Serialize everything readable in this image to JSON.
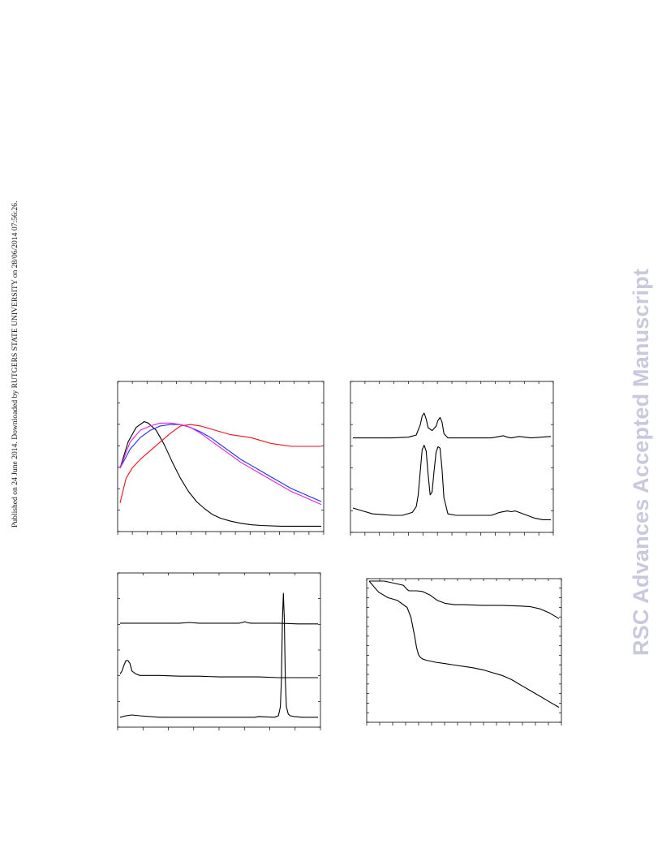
{
  "provenance": "Published on 24 June 2014. Downloaded by RUTGERS STATE UNIVERSITY on 28/06/2014 07:56:26.",
  "watermark": "RSC Advances Accepted Manuscript",
  "colors": {
    "black": "#000000",
    "red": "#e8101a",
    "blue": "#1a2cf0",
    "magenta": "#e01ee0"
  },
  "chart_data": [
    {
      "type": "line",
      "panel": "top-left",
      "title": "",
      "xlabel": "",
      "ylabel": "",
      "xlim": [
        0,
        100
      ],
      "ylim": [
        0,
        100
      ],
      "series": [
        {
          "color": "#000000",
          "x": [
            0,
            4,
            8,
            12,
            14,
            18,
            22,
            26,
            30,
            34,
            38,
            42,
            46,
            50,
            55,
            60,
            65,
            70,
            80,
            90,
            100
          ],
          "y": [
            42,
            60,
            70,
            74,
            73,
            68,
            58,
            46,
            35,
            26,
            19,
            14,
            10,
            7.5,
            5.5,
            4,
            3,
            2.5,
            2,
            2,
            2
          ]
        },
        {
          "color": "#e8101a",
          "x": [
            0,
            3,
            6,
            10,
            15,
            20,
            25,
            30,
            35,
            40,
            45,
            50,
            55,
            60,
            65,
            70,
            75,
            80,
            85,
            90,
            95,
            100
          ],
          "y": [
            18,
            35,
            42,
            48,
            54,
            60,
            66,
            71,
            72,
            71,
            69,
            67,
            65,
            64,
            63,
            61,
            59,
            58,
            57,
            57,
            57,
            57
          ]
        },
        {
          "color": "#1a2cf0",
          "x": [
            0,
            5,
            10,
            15,
            20,
            25,
            30,
            35,
            40,
            45,
            50,
            55,
            60,
            65,
            70,
            75,
            80,
            85,
            90,
            95,
            100
          ],
          "y": [
            42,
            55,
            63,
            68,
            71,
            72,
            72,
            70,
            67,
            63,
            58,
            53,
            48,
            44,
            40,
            36,
            32,
            28,
            25,
            22,
            19
          ]
        },
        {
          "color": "#e01ee0",
          "x": [
            0,
            5,
            10,
            15,
            20,
            25,
            30,
            35,
            40,
            45,
            50,
            55,
            60,
            65,
            70,
            75,
            80,
            85,
            90,
            95,
            100
          ],
          "y": [
            42,
            60,
            68,
            71,
            73,
            73,
            72,
            70,
            66,
            61,
            56,
            51,
            46,
            42,
            38,
            34,
            30,
            26,
            23,
            20,
            17
          ]
        }
      ]
    },
    {
      "type": "line",
      "panel": "top-right",
      "title": "",
      "xlabel": "",
      "ylabel": "",
      "xlim": [
        0,
        100
      ],
      "ylim": [
        0,
        100
      ],
      "series": [
        {
          "color": "#000000",
          "x": [
            0,
            10,
            20,
            28,
            32,
            34,
            35,
            36,
            37,
            38,
            40,
            42,
            43,
            44,
            45,
            46,
            48,
            52,
            60,
            70,
            74,
            76,
            78,
            80,
            82,
            84,
            90,
            100
          ],
          "y": [
            63,
            63,
            63,
            63.5,
            65,
            72,
            78,
            80,
            76,
            70,
            68,
            71,
            75,
            77,
            74,
            66,
            63,
            63,
            63,
            63,
            64,
            64.5,
            63.5,
            63,
            63.5,
            64,
            63,
            64
          ]
        },
        {
          "color": "#000000",
          "x": [
            0,
            5,
            10,
            15,
            20,
            25,
            30,
            32,
            33,
            34,
            35,
            36,
            37,
            38,
            39,
            40,
            41,
            42,
            43,
            44,
            45,
            46,
            48,
            52,
            60,
            70,
            74,
            78,
            80,
            82,
            84,
            88,
            92,
            96,
            100
          ],
          "y": [
            15,
            13,
            11,
            10.5,
            10,
            10,
            12,
            16,
            24,
            40,
            55,
            58,
            54,
            38,
            24,
            26,
            40,
            53,
            57,
            56,
            42,
            22,
            11,
            10,
            10,
            10,
            12,
            13,
            12.5,
            13,
            12,
            10,
            8,
            7,
            7
          ]
        }
      ]
    },
    {
      "type": "line",
      "panel": "bottom-left",
      "title": "",
      "xlabel": "",
      "ylabel": "",
      "xlim": [
        0,
        100
      ],
      "ylim": [
        0,
        100
      ],
      "series": [
        {
          "color": "#000000",
          "x": [
            0,
            10,
            20,
            30,
            35,
            40,
            50,
            60,
            62,
            63,
            64,
            66,
            70,
            80,
            90,
            100
          ],
          "y": [
            68,
            68,
            68,
            68,
            68.5,
            68,
            68,
            68,
            68.5,
            69,
            68.5,
            68,
            68,
            68,
            67.5,
            67.5
          ]
        },
        {
          "color": "#000000",
          "x": [
            0,
            1,
            2,
            3,
            4,
            5,
            6,
            8,
            10,
            14,
            20,
            30,
            40,
            50,
            60,
            70,
            80,
            90,
            100
          ],
          "y": [
            34,
            36,
            40,
            43,
            43,
            41,
            36,
            34,
            33,
            33,
            33,
            32.5,
            32.5,
            32,
            32,
            32,
            31.5,
            31.5,
            31.5
          ]
        },
        {
          "color": "#000000",
          "x": [
            0,
            3,
            6,
            10,
            20,
            30,
            40,
            50,
            60,
            68,
            70,
            78,
            80,
            81,
            81.5,
            82,
            82.5,
            83,
            83.5,
            84,
            85,
            86,
            88,
            92,
            100
          ],
          "y": [
            5,
            6,
            6.5,
            6,
            5,
            5,
            5,
            5,
            5,
            5,
            5.5,
            5,
            6,
            12,
            30,
            70,
            88,
            70,
            30,
            12,
            7,
            6,
            5.5,
            5,
            5
          ]
        }
      ]
    },
    {
      "type": "line",
      "panel": "bottom-right",
      "title": "",
      "xlabel": "",
      "ylabel": "",
      "xlim": [
        0,
        100
      ],
      "ylim": [
        0,
        100
      ],
      "series": [
        {
          "color": "#000000",
          "x": [
            0,
            8,
            18,
            20,
            21,
            22,
            25,
            28,
            32,
            36,
            40,
            45,
            50,
            60,
            70,
            80,
            85,
            90,
            95,
            100
          ],
          "y": [
            100,
            100,
            97,
            94,
            93,
            93,
            93,
            92.5,
            90,
            86,
            84,
            83,
            83,
            82.5,
            82.5,
            82,
            81.5,
            80,
            77,
            73
          ]
        },
        {
          "color": "#000000",
          "x": [
            0,
            5,
            10,
            15,
            20,
            22,
            24,
            25,
            26,
            27,
            28,
            30,
            35,
            40,
            45,
            50,
            55,
            60,
            65,
            70,
            75,
            80,
            85,
            90,
            95,
            100
          ],
          "y": [
            100,
            92,
            88,
            86,
            81,
            74,
            60,
            52,
            47,
            45,
            44,
            43,
            41.5,
            40.5,
            39.5,
            38.5,
            37.5,
            36,
            34,
            32,
            29,
            25,
            21,
            17,
            13,
            9
          ]
        }
      ]
    }
  ]
}
